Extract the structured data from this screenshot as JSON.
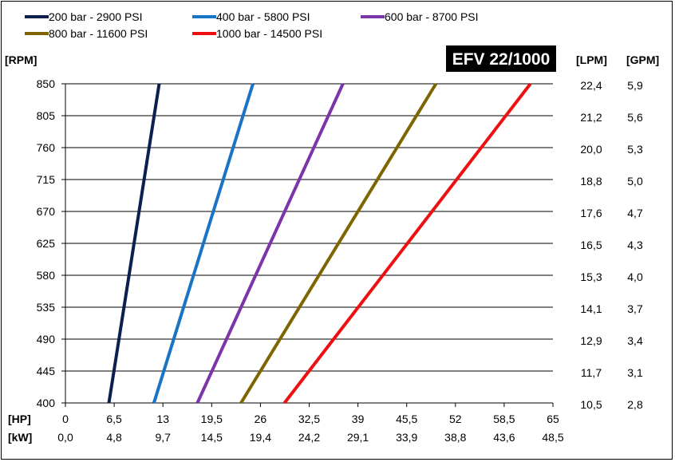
{
  "chart_data": {
    "type": "line",
    "title": "EFV 22/1000",
    "y_unit": "[RPM]",
    "x_unit": "[HP]",
    "x2_unit": "[kW]",
    "right_unit_1": "[LPM]",
    "right_unit_2": "[GPM]",
    "ylim": [
      400,
      850
    ],
    "xlim": [
      0,
      65
    ],
    "grid": "horizontal",
    "legend_position": "top",
    "y_ticks": [
      "850",
      "805",
      "760",
      "715",
      "670",
      "625",
      "580",
      "535",
      "490",
      "445",
      "400"
    ],
    "lpm_ticks": [
      "22,4",
      "21,2",
      "20,0",
      "18,8",
      "17,6",
      "16,5",
      "15,3",
      "14,1",
      "12,9",
      "11,7",
      "10,5"
    ],
    "gpm_ticks": [
      "5,9",
      "5,6",
      "5,3",
      "5,0",
      "4,7",
      "4,3",
      "4,0",
      "3,7",
      "3,4",
      "3,1",
      "2,8"
    ],
    "hp_ticks": [
      "0",
      "6,5",
      "13",
      "19,5",
      "26",
      "32,5",
      "39",
      "45,5",
      "52",
      "58,5",
      "65"
    ],
    "kw_ticks": [
      "0,0",
      "4,8",
      "9,7",
      "14,5",
      "19,4",
      "24,2",
      "29,1",
      "33,9",
      "38,8",
      "43,6",
      "48,5"
    ],
    "series": [
      {
        "name": "200 bar - 2900 PSI",
        "color": "#0c1f4f",
        "x": [
          5.8,
          12.5
        ],
        "y": [
          400,
          850
        ]
      },
      {
        "name": "400 bar - 5800 PSI",
        "color": "#1874c4",
        "x": [
          11.8,
          25.0
        ],
        "y": [
          400,
          850
        ]
      },
      {
        "name": "600 bar - 8700 PSI",
        "color": "#7b35a8",
        "x": [
          17.6,
          37.0
        ],
        "y": [
          400,
          850
        ]
      },
      {
        "name": "800 bar - 11600 PSI",
        "color": "#7f6500",
        "x": [
          23.4,
          49.4
        ],
        "y": [
          400,
          850
        ]
      },
      {
        "name": "1000 bar - 14500 PSI",
        "color": "#ee1010",
        "x": [
          29.2,
          62.0
        ],
        "y": [
          400,
          850
        ]
      }
    ]
  }
}
